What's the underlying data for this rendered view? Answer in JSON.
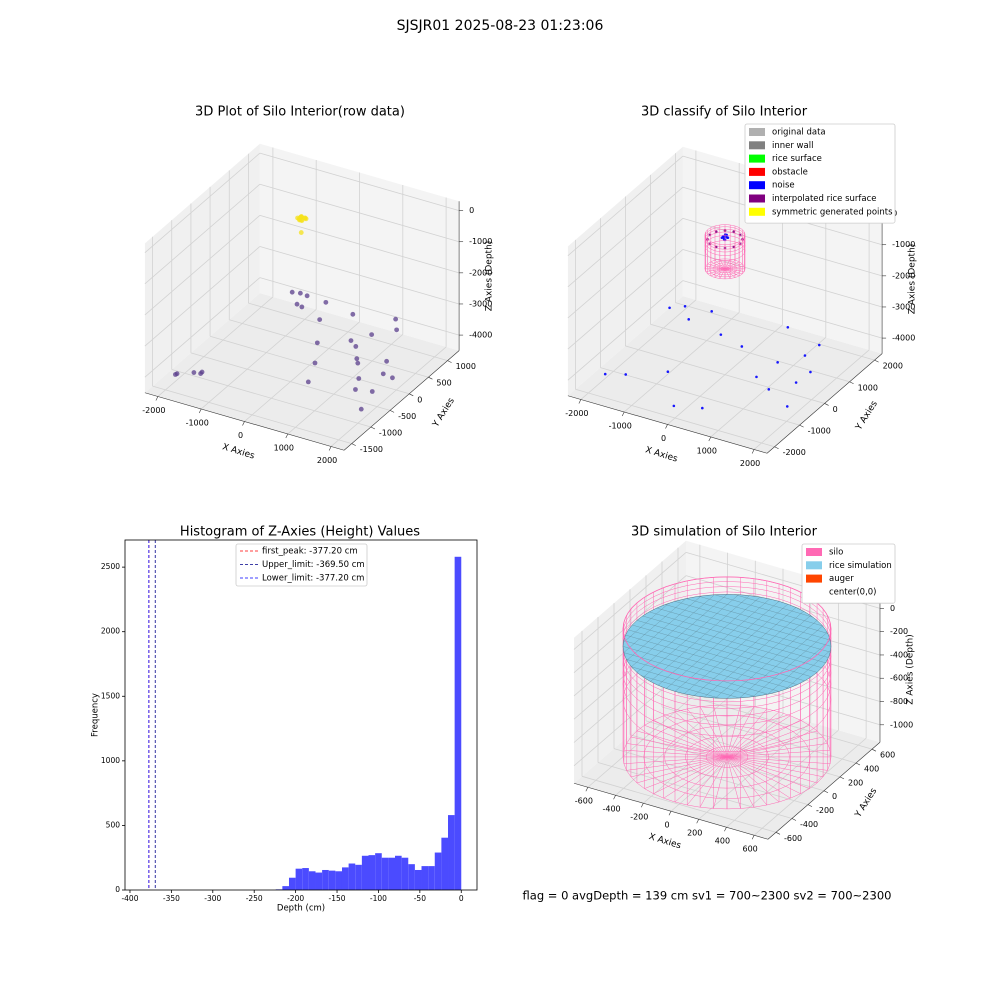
{
  "title": "SJSJR01 2025-08-23 01:23:06",
  "footer": "flag = 0     avgDepth = 139 cm  sv1 = 700~2300  sv2 = 700~2300",
  "chart_data": [
    {
      "type": "scatter3d",
      "title": "3D Plot of Silo Interior(row data)",
      "xlabel": "X Axies",
      "ylabel": "Y Axies",
      "zlabel": "Z Axies (Depth)",
      "xlim": [
        -2300,
        2300
      ],
      "ylim": [
        -1700,
        1300
      ],
      "zlim": [
        -4500,
        300
      ],
      "xticks": [
        -2000,
        -1000,
        0,
        1000,
        2000
      ],
      "yticks": [
        -1500,
        -1000,
        -500,
        0,
        500,
        1000
      ],
      "zticks": [
        -4000,
        -3000,
        -2000,
        -1000,
        0
      ],
      "series": [
        {
          "color": "#f5e11a",
          "x": [
            -350,
            -300,
            -250,
            -200,
            -320,
            -270,
            -220,
            -290,
            -240,
            -180,
            -330,
            -150
          ],
          "y": [
            80,
            120,
            60,
            100,
            150,
            40,
            130,
            90,
            70,
            110,
            100,
            -50
          ],
          "z": [
            0,
            20,
            -10,
            30,
            -20,
            10,
            0,
            40,
            -30,
            10,
            -40,
            -250
          ]
        },
        {
          "color": "#5b3f8c",
          "x": [
            -2000,
            -1950,
            -1700,
            -1600,
            -1500,
            -1200,
            -1100,
            -1000,
            -900,
            -800,
            -600,
            -300,
            0,
            300,
            500,
            800,
            1000,
            1200,
            1400,
            1500,
            1600,
            1700,
            1800,
            1900,
            2000,
            1300,
            1100,
            900,
            600,
            200
          ],
          "y": [
            -1200,
            -1300,
            -1100,
            -1000,
            -1150,
            900,
            1000,
            800,
            950,
            700,
            1100,
            600,
            200,
            -200,
            -600,
            300,
            100,
            -100,
            -300,
            -500,
            200,
            0,
            -400,
            -800,
            -100,
            800,
            1000,
            600,
            400,
            900
          ],
          "z": [
            -4300,
            -4200,
            -4250,
            -4300,
            -4150,
            -3600,
            -3700,
            -3800,
            -3650,
            -3700,
            -3900,
            -3800,
            -4000,
            -4100,
            -4200,
            -3900,
            -4000,
            -3850,
            -4050,
            -4150,
            -3950,
            -4100,
            -4200,
            -4300,
            -4000,
            -3700,
            -3650,
            -3800,
            -3900,
            -3750
          ]
        }
      ]
    },
    {
      "type": "scatter3d",
      "title": "3D classify of Silo Interior",
      "xlabel": "X Axies",
      "ylabel": "Y Axies",
      "zlabel": "Z Axies (Depth)",
      "xlim": [
        -2300,
        2300
      ],
      "ylim": [
        -2300,
        2300
      ],
      "zlim": [
        -4500,
        300
      ],
      "xticks": [
        -2000,
        -1000,
        0,
        1000,
        2000
      ],
      "yticks": [
        -2000,
        -1000,
        0,
        1000,
        2000
      ],
      "zticks": [
        -4000,
        -3000,
        -2000,
        -1000,
        0
      ],
      "legend": "upper right",
      "cylinder": {
        "color": "#ff69b4",
        "radius": 400,
        "zlim": [
          -1100,
          0
        ]
      },
      "series": [
        {
          "name": "original data",
          "color": "#b0b0b0",
          "x": [],
          "y": [],
          "z": []
        },
        {
          "name": "inner wall",
          "color": "#808080",
          "x": [],
          "y": [],
          "z": []
        },
        {
          "name": "rice surface",
          "color": "#00ff00",
          "x": [],
          "y": [],
          "z": []
        },
        {
          "name": "obstacle",
          "color": "#ff0000",
          "x": [],
          "y": [],
          "z": []
        },
        {
          "name": "noise",
          "color": "#0000ff",
          "x": [
            -1900,
            -1800,
            -1600,
            -1500,
            -1300,
            -1000,
            -800,
            -500,
            -200,
            100,
            400,
            700,
            900,
            1100,
            1300,
            1500,
            1700,
            1800,
            1900,
            1600,
            -50,
            0,
            50,
            -30,
            20,
            40,
            -60,
            10,
            -20,
            30
          ],
          "y": [
            -1500,
            900,
            -1200,
            1000,
            800,
            1200,
            -900,
            700,
            -1700,
            500,
            -1600,
            1300,
            -300,
            200,
            -500,
            600,
            -100,
            300,
            -800,
            1000,
            10,
            -40,
            30,
            60,
            -70,
            0,
            -20,
            50,
            40,
            -50
          ],
          "z": [
            -4200,
            -3700,
            -4300,
            -3600,
            -3800,
            -3700,
            -4100,
            -3900,
            -4400,
            -3900,
            -4300,
            -3600,
            -4000,
            -3800,
            -4100,
            -3700,
            -4000,
            -3900,
            -4200,
            -3600,
            -80,
            -60,
            -100,
            -50,
            -90,
            -70,
            -110,
            -40,
            -60,
            -120
          ]
        },
        {
          "name": "interpolated rice surface",
          "color": "#800080",
          "x": [
            350,
            303,
            175,
            0,
            -175,
            -303,
            -350,
            -303,
            -175,
            0,
            175,
            303
          ],
          "y": [
            0,
            175,
            303,
            350,
            303,
            175,
            0,
            -175,
            -303,
            -350,
            -303,
            -175
          ],
          "z": [
            -150,
            -150,
            -150,
            -150,
            -150,
            -150,
            -150,
            -150,
            -150,
            -150,
            -150,
            -150
          ]
        },
        {
          "name": "symmetric generated points",
          "color": "#ffff00",
          "x": [],
          "y": [],
          "z": []
        }
      ]
    },
    {
      "type": "histogram",
      "title": "Histogram of Z-Axies (Height) Values",
      "xlabel": "Depth (cm)",
      "ylabel": "Frequency",
      "color": "#4b4bff",
      "xlim": [
        -406,
        19
      ],
      "ylim": [
        0,
        2710
      ],
      "xticks": [
        -400,
        -350,
        -300,
        -250,
        -200,
        -150,
        -100,
        -50,
        0
      ],
      "yticks": [
        0,
        500,
        1000,
        1500,
        2000,
        2500
      ],
      "bins": [
        -400,
        -392,
        -384,
        -376,
        -368,
        -360,
        -352,
        -344,
        -336,
        -328,
        -320,
        -312,
        -304,
        -296,
        -288,
        -280,
        -272,
        -264,
        -256,
        -248,
        -240,
        -232,
        -224,
        -216,
        -208,
        -200,
        -192,
        -184,
        -176,
        -168,
        -160,
        -152,
        -144,
        -136,
        -128,
        -120,
        -112,
        -104,
        -96,
        -88,
        -80,
        -72,
        -64,
        -56,
        -48,
        -40,
        -32,
        -24,
        -16,
        -8,
        0
      ],
      "values": [
        0,
        0,
        0,
        0,
        0,
        0,
        0,
        0,
        0,
        0,
        0,
        0,
        0,
        0,
        0,
        0,
        0,
        0,
        0,
        0,
        0,
        0,
        5,
        30,
        95,
        165,
        170,
        145,
        135,
        155,
        150,
        145,
        175,
        205,
        195,
        265,
        270,
        285,
        250,
        250,
        265,
        250,
        200,
        155,
        185,
        185,
        290,
        405,
        580,
        2580
      ],
      "vlines": [
        {
          "value": -377.2,
          "label": "first_peak: -377.20 cm",
          "color": "#ff0000"
        },
        {
          "value": -369.5,
          "label": "Upper_limit: -369.50 cm",
          "color": "#00008b"
        },
        {
          "value": -377.2,
          "label": "Lower_limit: -377.20 cm",
          "color": "#0000ff"
        }
      ]
    },
    {
      "type": "silo3d",
      "title": "3D simulation of Silo Interior",
      "xlabel": "X Axies",
      "ylabel": "Y Axies",
      "zlabel": "Z Axies (Depth)",
      "xlim": [
        -700,
        700
      ],
      "ylim": [
        -700,
        700
      ],
      "zlim": [
        -1150,
        100
      ],
      "xticks": [
        -600,
        -400,
        -200,
        0,
        200,
        400,
        600
      ],
      "yticks": [
        -600,
        -400,
        -200,
        0,
        200,
        400,
        600
      ],
      "zticks": [
        -1000,
        -800,
        -600,
        -400,
        -200,
        0
      ],
      "legend": "upper right",
      "series": [
        {
          "name": "silo",
          "color": "#ff69b4",
          "radius": 650,
          "zlim": [
            -1100,
            0
          ]
        },
        {
          "name": "rice simulation",
          "color": "#87ceeb",
          "radius": 650,
          "z": -150
        },
        {
          "name": "auger",
          "color": "#ff4500"
        },
        {
          "name": "center(0,0)",
          "color": "#ffffff"
        }
      ]
    }
  ]
}
